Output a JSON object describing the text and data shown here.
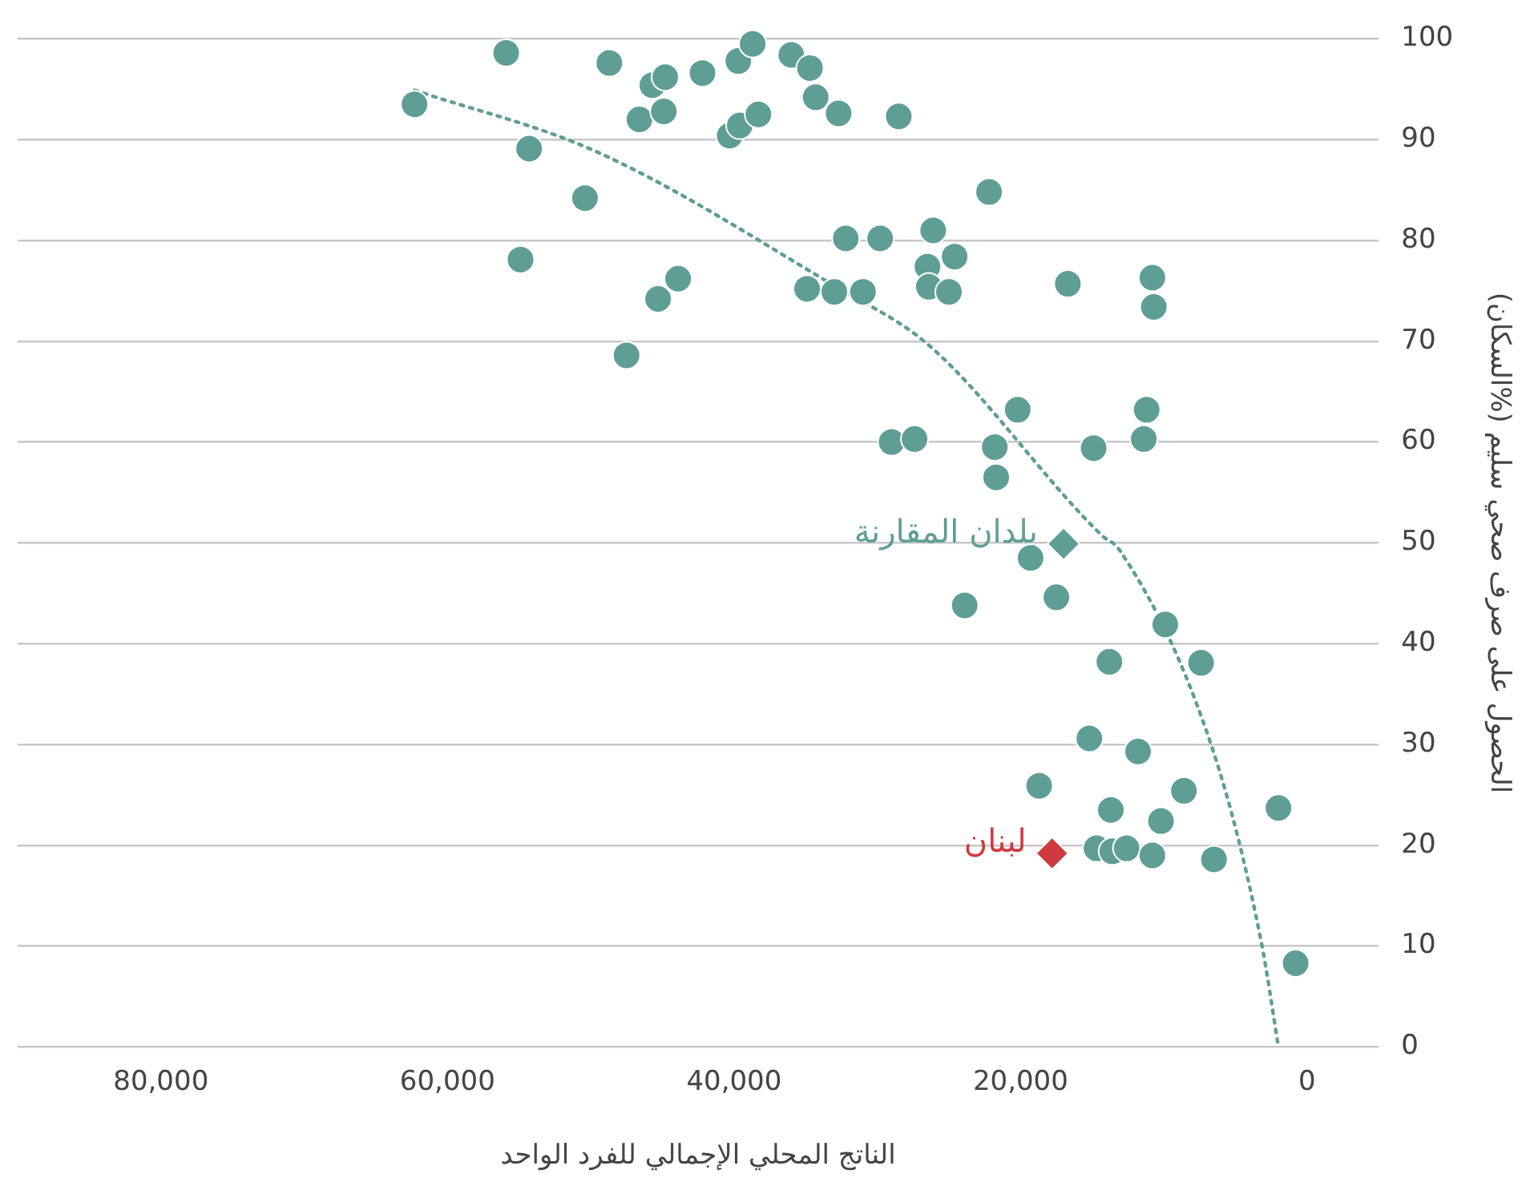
{
  "chart_data": {
    "type": "scatter",
    "xlabel": "الناتج المحلي الإجمالي للفرد الواحد",
    "ylabel": "الحصول على صرف صحي سليم (%السكان)",
    "xlim": [
      90000,
      -5000
    ],
    "xticks": [
      {
        "value": 80000,
        "label": "80,000"
      },
      {
        "value": 60000,
        "label": "60,000"
      },
      {
        "value": 40000,
        "label": "40,000"
      },
      {
        "value": 20000,
        "label": "20,000"
      },
      0
    ],
    "ylim": [
      0,
      100
    ],
    "yticks": [
      0,
      10,
      20,
      30,
      40,
      50,
      60,
      70,
      80,
      90,
      100
    ],
    "grid": "y",
    "legend": false,
    "marker": "circle",
    "series": [
      {
        "color": "#5f9e94",
        "x": [
          62300,
          55900,
          54300,
          54900,
          50400,
          48700,
          47500,
          46600,
          45700,
          44800,
          44900,
          45300,
          43900,
          42200,
          40300,
          39700,
          39600,
          38700,
          38300,
          36000,
          34700,
          34300,
          32700,
          28500,
          22200,
          34900,
          33000,
          32200,
          31000,
          29800,
          29000,
          27400,
          26500,
          26100,
          26400,
          25000,
          24600,
          16700,
          10800,
          10700,
          20200,
          21800,
          21700,
          14900,
          11200,
          11400,
          19300,
          23900,
          17500,
          9900,
          13800,
          7400,
          15200,
          11800,
          18700,
          13700,
          8600,
          10200,
          2000,
          14700,
          13600,
          12600,
          10800,
          6500,
          800
        ],
        "values": [
          93.5,
          98.6,
          89.1,
          78.1,
          84.2,
          97.6,
          68.6,
          92,
          95.4,
          96.2,
          92.8,
          74.2,
          76.2,
          96.6,
          90.4,
          97.8,
          91.4,
          99.5,
          92.5,
          98.4,
          97.1,
          94.2,
          92.6,
          92.3,
          84.8,
          75.2,
          74.9,
          80.2,
          74.9,
          80.2,
          60,
          60.3,
          77.4,
          81,
          75.4,
          74.9,
          78.4,
          75.7,
          76.3,
          73.4,
          63.2,
          59.5,
          56.5,
          59.4,
          63.2,
          60.3,
          48.5,
          43.8,
          44.6,
          41.9,
          38.2,
          38.1,
          30.6,
          29.3,
          25.9,
          23.5,
          25.4,
          22.4,
          23.7,
          19.7,
          19.4,
          19.7,
          19,
          18.6,
          8.3
        ]
      },
      {
        "type": "line",
        "color": "#5f9e94",
        "marker": "none",
        "line_style": "dotted",
        "x": [
          62300,
          49600,
          33000,
          26400,
          14300,
          13100,
          6500,
          3200,
          2000
        ],
        "values": [
          94.9,
          88.8,
          75.5,
          69.6,
          50.7,
          49.3,
          29.1,
          10.4,
          0
        ]
      },
      {
        "name": "بلدان المقارنة",
        "color": "#5f9e94",
        "marker": "diamond",
        "x": [
          17000
        ],
        "values": [
          49.9
        ]
      },
      {
        "name": "لبنان",
        "color": "#cf3a40",
        "marker": "diamond",
        "x": [
          17800
        ],
        "values": [
          19.2
        ]
      }
    ]
  }
}
